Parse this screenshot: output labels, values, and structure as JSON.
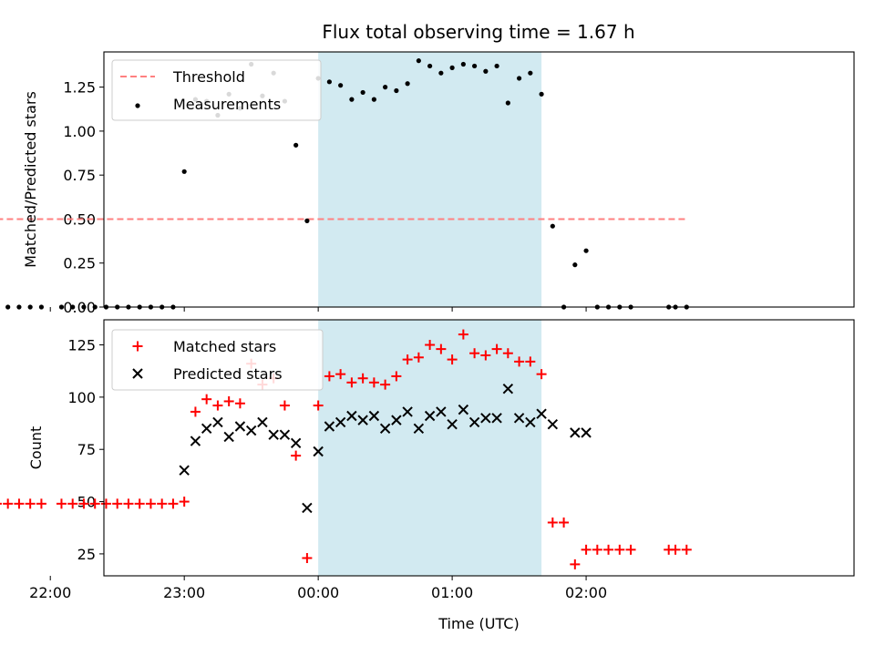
{
  "chart_data": {
    "type": "scatter",
    "title": "Flux total observing time = 1.67 h",
    "xlabel": "Time (UTC)",
    "x_unit": "minutes relative to 00:00 UTC",
    "xlim": [
      -96,
      240
    ],
    "x_ticks": [
      {
        "value": -120,
        "label": "22:00"
      },
      {
        "value": -60,
        "label": "23:00"
      },
      {
        "value": 0,
        "label": "00:00"
      },
      {
        "value": 60,
        "label": "01:00"
      },
      {
        "value": 120,
        "label": "02:00"
      }
    ],
    "highlight_span": [
      0,
      100
    ],
    "highlight_color": "#add8e6",
    "top": {
      "ylabel": "Matched/Predicted stars",
      "ylim": [
        0,
        1.45
      ],
      "y_ticks": [
        {
          "value": 0,
          "label": "0.00"
        },
        {
          "value": 0.25,
          "label": "0.25"
        },
        {
          "value": 0.5,
          "label": "0.50"
        },
        {
          "value": 0.75,
          "label": "0.75"
        },
        {
          "value": 1.0,
          "label": "1.00"
        },
        {
          "value": 1.25,
          "label": "1.25"
        }
      ],
      "legend": [
        {
          "label": "Threshold",
          "kind": "dashed-line",
          "color": "#ff8080"
        },
        {
          "label": "Measurements",
          "kind": "dot",
          "color": "#000000"
        }
      ],
      "threshold": {
        "value": 0.5,
        "x_range": [
          -144,
          165
        ]
      },
      "measurements": [
        [
          -144,
          0
        ],
        [
          -139,
          0
        ],
        [
          -134,
          0
        ],
        [
          -129,
          0
        ],
        [
          -124,
          0
        ],
        [
          -115,
          0
        ],
        [
          -110,
          0
        ],
        [
          -105,
          0
        ],
        [
          -100,
          0
        ],
        [
          -95,
          0
        ],
        [
          -90,
          0
        ],
        [
          -85,
          0
        ],
        [
          -80,
          0
        ],
        [
          -75,
          0
        ],
        [
          -70,
          0
        ],
        [
          -65,
          0
        ],
        [
          -60,
          0.77
        ],
        [
          -55,
          1.18
        ],
        [
          -50,
          1.17
        ],
        [
          -45,
          1.09
        ],
        [
          -40,
          1.21
        ],
        [
          -35,
          1.13
        ],
        [
          -30,
          1.38
        ],
        [
          -25,
          1.2
        ],
        [
          -20,
          1.33
        ],
        [
          -15,
          1.17
        ],
        [
          -10,
          0.92
        ],
        [
          -5,
          0.49
        ],
        [
          0,
          1.3
        ],
        [
          5,
          1.28
        ],
        [
          10,
          1.26
        ],
        [
          15,
          1.18
        ],
        [
          20,
          1.22
        ],
        [
          25,
          1.18
        ],
        [
          30,
          1.25
        ],
        [
          35,
          1.23
        ],
        [
          40,
          1.27
        ],
        [
          45,
          1.4
        ],
        [
          50,
          1.37
        ],
        [
          55,
          1.33
        ],
        [
          60,
          1.36
        ],
        [
          65,
          1.38
        ],
        [
          70,
          1.37
        ],
        [
          75,
          1.34
        ],
        [
          80,
          1.37
        ],
        [
          85,
          1.16
        ],
        [
          90,
          1.3
        ],
        [
          95,
          1.33
        ],
        [
          100,
          1.21
        ],
        [
          105,
          0.46
        ],
        [
          110,
          0
        ],
        [
          115,
          0.24
        ],
        [
          120,
          0.32
        ],
        [
          125,
          0
        ],
        [
          130,
          0
        ],
        [
          135,
          0
        ],
        [
          140,
          0
        ],
        [
          157,
          0
        ],
        [
          160,
          0
        ],
        [
          165,
          0
        ]
      ]
    },
    "bottom": {
      "ylabel": "Count",
      "ylim": [
        14.5,
        137
      ],
      "y_ticks": [
        {
          "value": 25,
          "label": "25"
        },
        {
          "value": 50,
          "label": "50"
        },
        {
          "value": 75,
          "label": "75"
        },
        {
          "value": 100,
          "label": "100"
        },
        {
          "value": 125,
          "label": "125"
        }
      ],
      "legend": [
        {
          "label": "Matched stars",
          "kind": "plus",
          "color": "#ff0000"
        },
        {
          "label": "Predicted stars",
          "kind": "x",
          "color": "#000000"
        }
      ],
      "matched": [
        [
          -144,
          49
        ],
        [
          -139,
          49
        ],
        [
          -134,
          49
        ],
        [
          -129,
          49
        ],
        [
          -124,
          49
        ],
        [
          -115,
          49
        ],
        [
          -110,
          49
        ],
        [
          -105,
          49
        ],
        [
          -100,
          49
        ],
        [
          -95,
          49
        ],
        [
          -90,
          49
        ],
        [
          -85,
          49
        ],
        [
          -80,
          49
        ],
        [
          -75,
          49
        ],
        [
          -70,
          49
        ],
        [
          -65,
          49
        ],
        [
          -60,
          50
        ],
        [
          -55,
          93
        ],
        [
          -50,
          99
        ],
        [
          -45,
          96
        ],
        [
          -40,
          98
        ],
        [
          -35,
          97
        ],
        [
          -30,
          116
        ],
        [
          -25,
          106
        ],
        [
          -20,
          109
        ],
        [
          -15,
          96
        ],
        [
          -10,
          72
        ],
        [
          -5,
          23
        ],
        [
          0,
          96
        ],
        [
          5,
          110
        ],
        [
          10,
          111
        ],
        [
          15,
          107
        ],
        [
          20,
          109
        ],
        [
          25,
          107
        ],
        [
          30,
          106
        ],
        [
          35,
          110
        ],
        [
          40,
          118
        ],
        [
          45,
          119
        ],
        [
          50,
          125
        ],
        [
          55,
          123
        ],
        [
          60,
          118
        ],
        [
          65,
          130
        ],
        [
          70,
          121
        ],
        [
          75,
          120
        ],
        [
          80,
          123
        ],
        [
          85,
          121
        ],
        [
          90,
          117
        ],
        [
          95,
          117
        ],
        [
          100,
          111
        ],
        [
          105,
          40
        ],
        [
          110,
          40
        ],
        [
          115,
          20
        ],
        [
          120,
          27
        ],
        [
          125,
          27
        ],
        [
          130,
          27
        ],
        [
          135,
          27
        ],
        [
          140,
          27
        ],
        [
          157,
          27
        ],
        [
          160,
          27
        ],
        [
          165,
          27
        ]
      ],
      "predicted": [
        [
          -60,
          65
        ],
        [
          -55,
          79
        ],
        [
          -50,
          85
        ],
        [
          -45,
          88
        ],
        [
          -40,
          81
        ],
        [
          -35,
          86
        ],
        [
          -30,
          84
        ],
        [
          -25,
          88
        ],
        [
          -20,
          82
        ],
        [
          -15,
          82
        ],
        [
          -10,
          78
        ],
        [
          -5,
          47
        ],
        [
          0,
          74
        ],
        [
          5,
          86
        ],
        [
          10,
          88
        ],
        [
          15,
          91
        ],
        [
          20,
          89
        ],
        [
          25,
          91
        ],
        [
          30,
          85
        ],
        [
          35,
          89
        ],
        [
          40,
          93
        ],
        [
          45,
          85
        ],
        [
          50,
          91
        ],
        [
          55,
          93
        ],
        [
          60,
          87
        ],
        [
          65,
          94
        ],
        [
          70,
          88
        ],
        [
          75,
          90
        ],
        [
          80,
          90
        ],
        [
          85,
          104
        ],
        [
          90,
          90
        ],
        [
          95,
          88
        ],
        [
          100,
          92
        ],
        [
          105,
          87
        ],
        [
          115,
          83
        ],
        [
          120,
          83
        ]
      ]
    }
  }
}
